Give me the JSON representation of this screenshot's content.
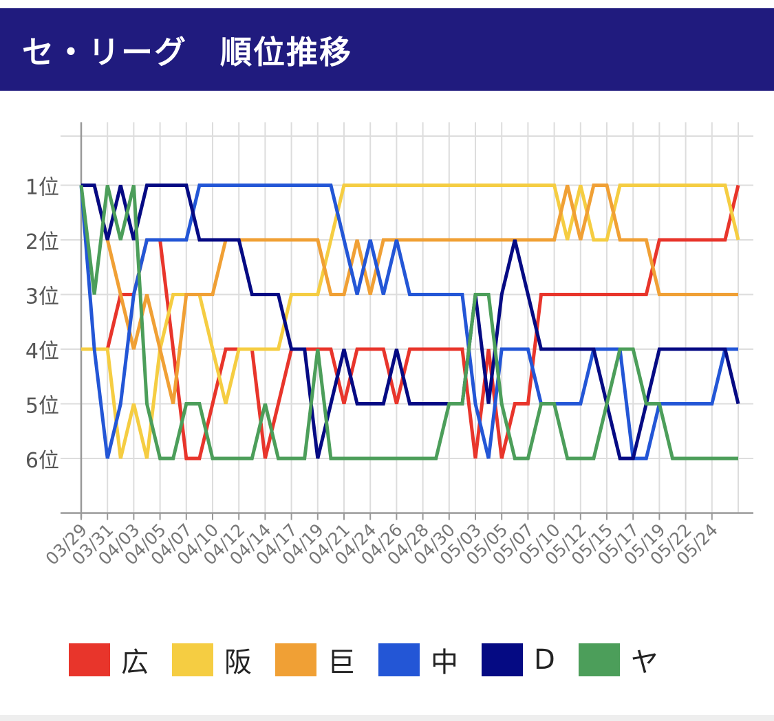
{
  "header": {
    "title": "セ・リーグ　順位推移"
  },
  "chart_data": {
    "type": "line",
    "title": "セ・リーグ　順位推移",
    "ylim": [
      0,
      7
    ],
    "y_inverted": true,
    "yticks": [
      1,
      2,
      3,
      4,
      5,
      6
    ],
    "ytick_labels": [
      "1位",
      "2位",
      "3位",
      "4位",
      "5位",
      "6位"
    ],
    "grid": true,
    "legend_position": "bottom",
    "x_count": 51,
    "xtick_labels": [
      {
        "i": 0,
        "label": "03/29"
      },
      {
        "i": 2,
        "label": "03/31"
      },
      {
        "i": 4,
        "label": "04/03"
      },
      {
        "i": 6,
        "label": "04/05"
      },
      {
        "i": 8,
        "label": "04/07"
      },
      {
        "i": 10,
        "label": "04/10"
      },
      {
        "i": 12,
        "label": "04/12"
      },
      {
        "i": 14,
        "label": "04/14"
      },
      {
        "i": 16,
        "label": "04/17"
      },
      {
        "i": 18,
        "label": "04/19"
      },
      {
        "i": 20,
        "label": "04/21"
      },
      {
        "i": 22,
        "label": "04/24"
      },
      {
        "i": 24,
        "label": "04/26"
      },
      {
        "i": 26,
        "label": "04/28"
      },
      {
        "i": 28,
        "label": "04/30"
      },
      {
        "i": 30,
        "label": "05/03"
      },
      {
        "i": 32,
        "label": "05/05"
      },
      {
        "i": 34,
        "label": "05/07"
      },
      {
        "i": 36,
        "label": "05/10"
      },
      {
        "i": 38,
        "label": "05/12"
      },
      {
        "i": 40,
        "label": "05/15"
      },
      {
        "i": 42,
        "label": "05/17"
      },
      {
        "i": 44,
        "label": "05/19"
      },
      {
        "i": 46,
        "label": "05/22"
      },
      {
        "i": 48,
        "label": "05/24"
      }
    ],
    "series": [
      {
        "name": "広",
        "color": "#e8352b",
        "values": [
          4,
          4,
          4,
          3,
          3,
          2,
          2,
          4,
          6,
          6,
          5,
          4,
          4,
          4,
          6,
          5,
          4,
          4,
          4,
          4,
          5,
          4,
          4,
          4,
          5,
          4,
          4,
          4,
          4,
          4,
          6,
          4,
          6,
          5,
          5,
          3,
          3,
          3,
          3,
          3,
          3,
          3,
          3,
          3,
          2,
          2,
          2,
          2,
          2,
          2,
          1
        ]
      },
      {
        "name": "阪",
        "color": "#f5cd42",
        "values": [
          4,
          4,
          4,
          6,
          5,
          6,
          4,
          3,
          3,
          3,
          4,
          5,
          4,
          4,
          4,
          4,
          3,
          3,
          3,
          2,
          1,
          1,
          1,
          1,
          1,
          1,
          1,
          1,
          1,
          1,
          1,
          1,
          1,
          1,
          1,
          1,
          1,
          2,
          1,
          2,
          2,
          1,
          1,
          1,
          1,
          1,
          1,
          1,
          1,
          1,
          2
        ]
      },
      {
        "name": "巨",
        "color": "#f0a035",
        "values": [
          1,
          1,
          2,
          3,
          4,
          3,
          4,
          5,
          3,
          3,
          3,
          2,
          2,
          2,
          2,
          2,
          2,
          2,
          2,
          3,
          3,
          2,
          3,
          2,
          2,
          2,
          2,
          2,
          2,
          2,
          2,
          2,
          2,
          2,
          2,
          2,
          2,
          1,
          2,
          1,
          1,
          2,
          2,
          2,
          3,
          3,
          3,
          3,
          3,
          3,
          3
        ]
      },
      {
        "name": "中",
        "color": "#2356d6",
        "values": [
          1,
          4,
          6,
          5,
          3,
          2,
          2,
          2,
          2,
          1,
          1,
          1,
          1,
          1,
          1,
          1,
          1,
          1,
          1,
          1,
          2,
          3,
          2,
          3,
          2,
          3,
          3,
          3,
          3,
          3,
          5,
          6,
          4,
          4,
          4,
          5,
          5,
          5,
          5,
          4,
          4,
          4,
          6,
          6,
          5,
          5,
          5,
          5,
          5,
          4,
          4
        ]
      },
      {
        "name": "D",
        "color": "#050a83",
        "values": [
          1,
          1,
          2,
          1,
          2,
          1,
          1,
          1,
          1,
          2,
          2,
          2,
          2,
          3,
          3,
          3,
          4,
          4,
          6,
          5,
          4,
          5,
          5,
          5,
          4,
          5,
          5,
          5,
          5,
          5,
          3,
          5,
          3,
          2,
          3,
          4,
          4,
          4,
          4,
          4,
          5,
          6,
          6,
          5,
          4,
          4,
          4,
          4,
          4,
          4,
          5
        ]
      },
      {
        "name": "ヤ",
        "color": "#4c9e5a",
        "values": [
          1,
          3,
          1,
          2,
          1,
          5,
          6,
          6,
          5,
          5,
          6,
          6,
          6,
          6,
          5,
          6,
          6,
          6,
          4,
          6,
          6,
          6,
          6,
          6,
          6,
          6,
          6,
          6,
          5,
          5,
          3,
          3,
          5,
          6,
          6,
          5,
          5,
          6,
          6,
          6,
          5,
          4,
          4,
          5,
          5,
          6,
          6,
          6,
          6,
          6,
          6
        ]
      }
    ]
  }
}
